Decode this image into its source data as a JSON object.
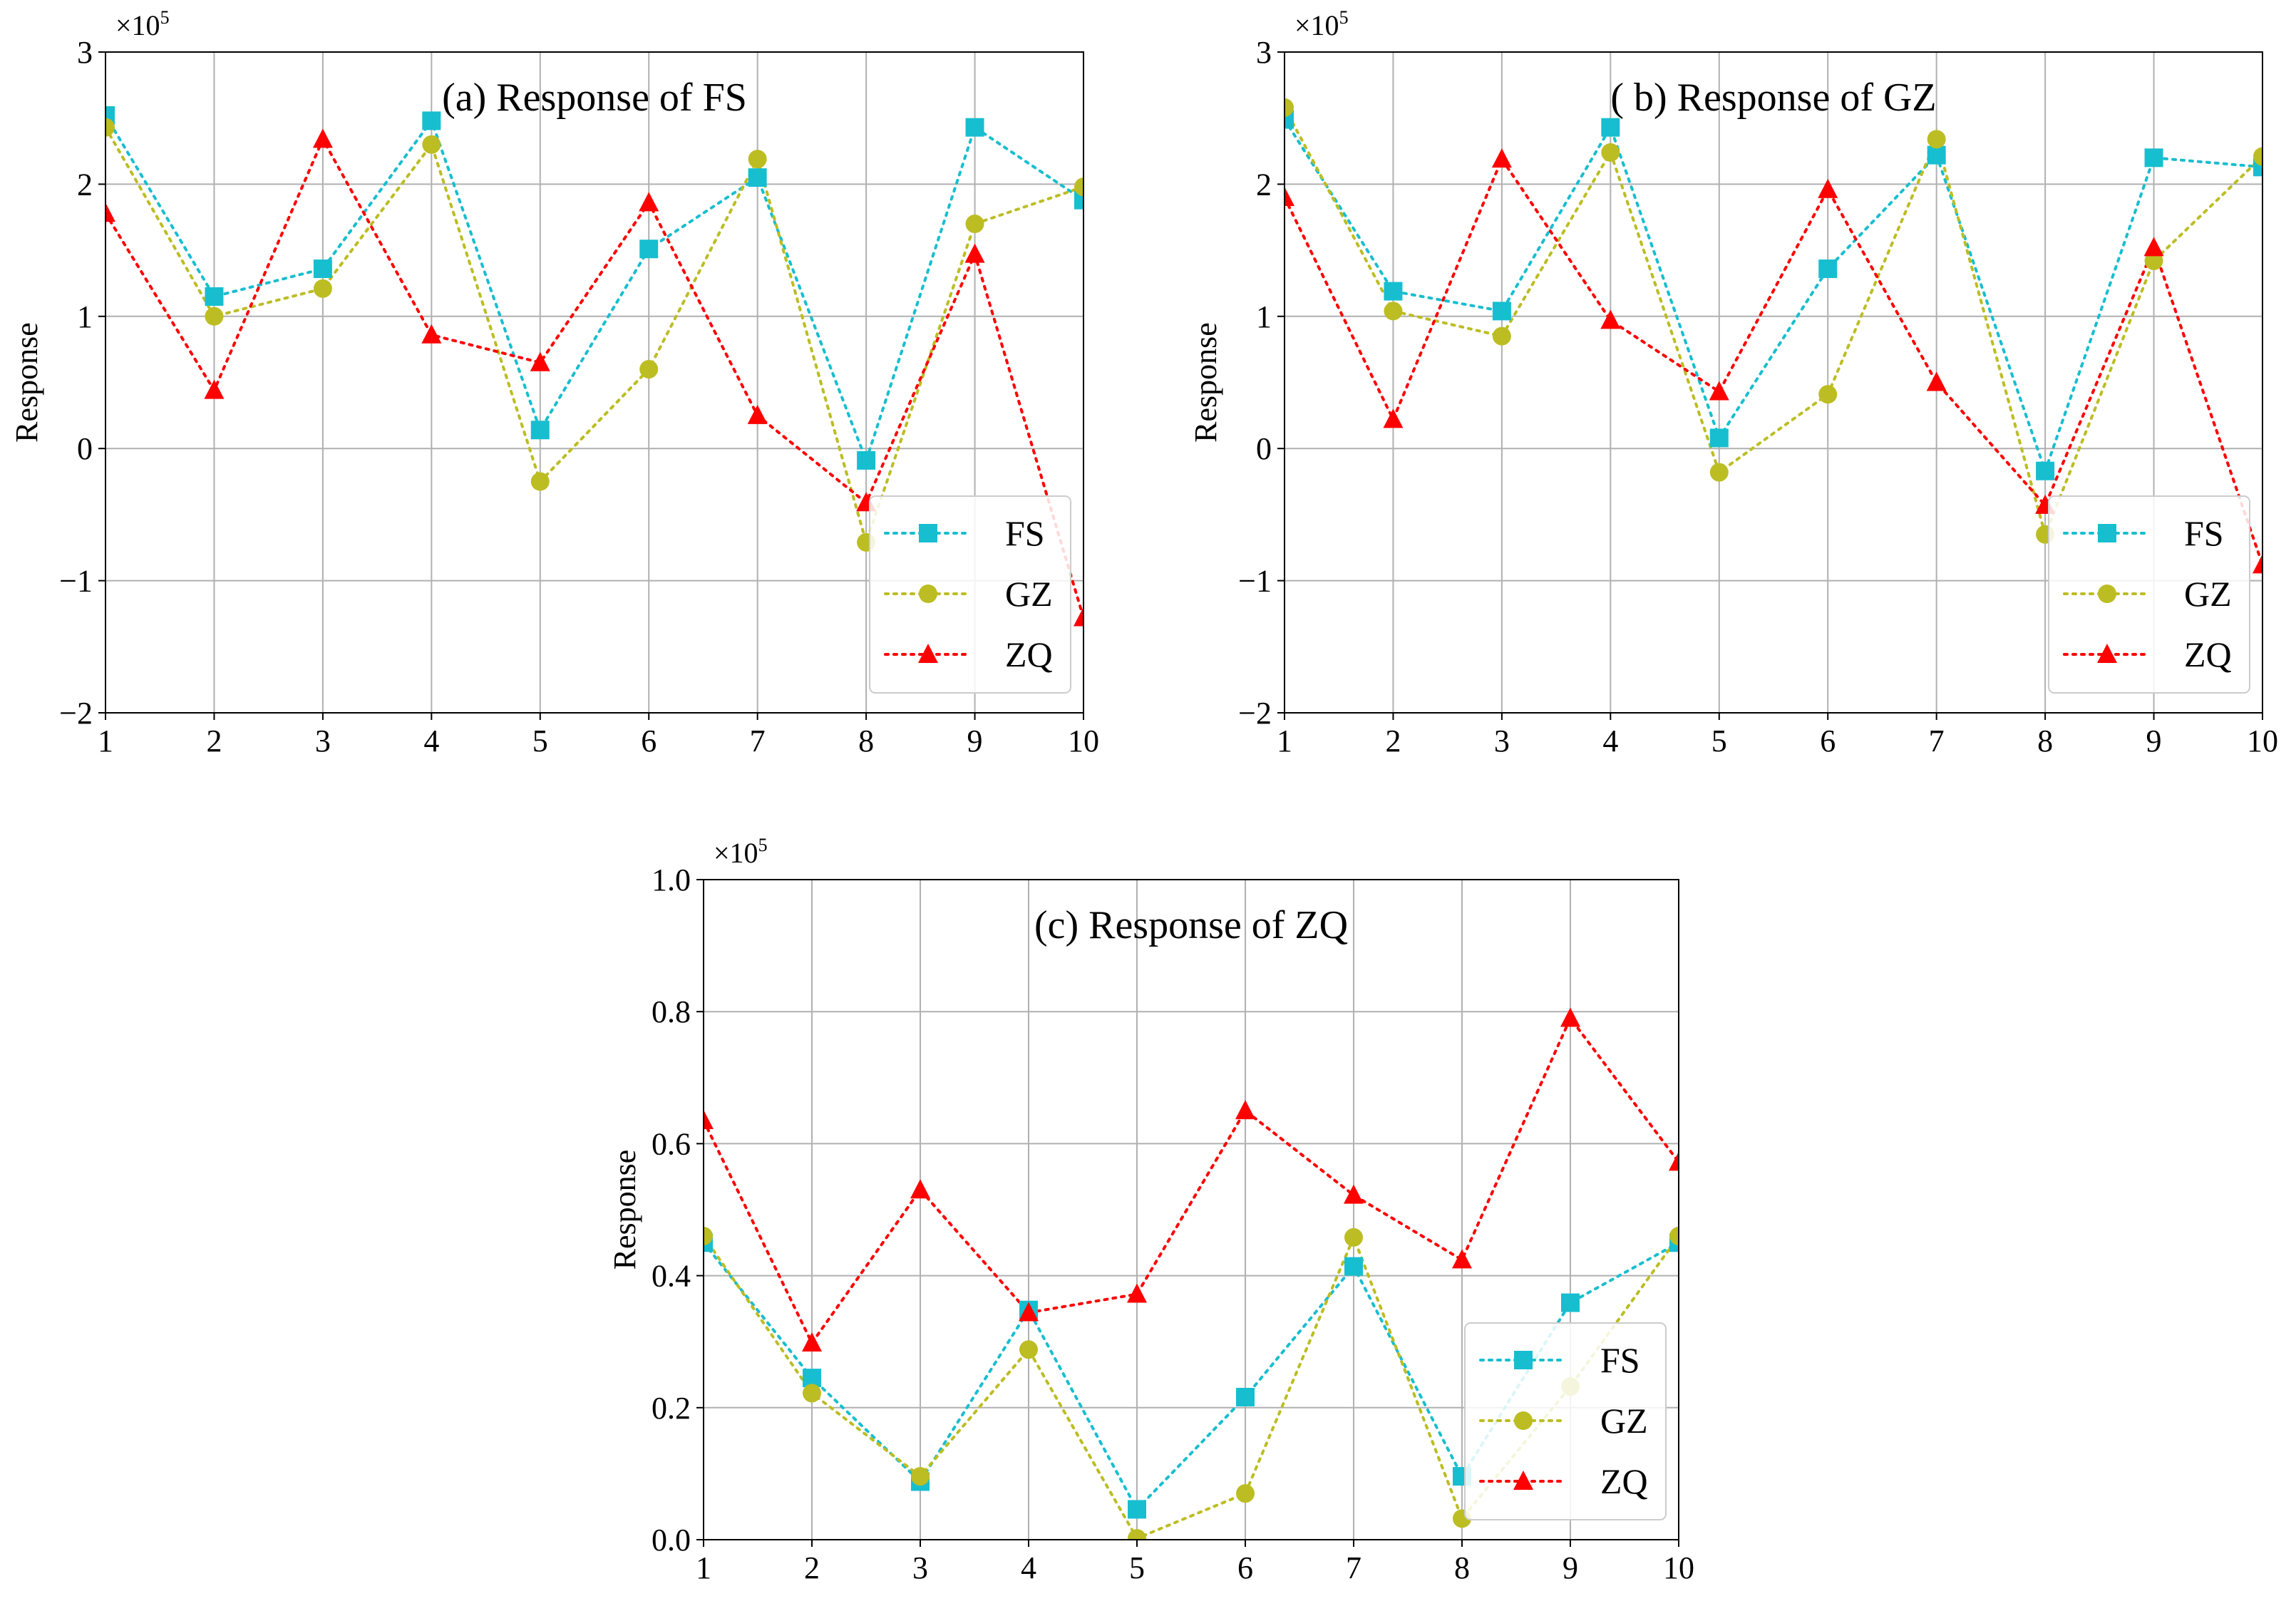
{
  "colors": {
    "FS": "#17becf",
    "GZ": "#bcbd22",
    "ZQ": "#ff0000",
    "grid": "#b0b0b0",
    "axis": "#000000"
  },
  "chart_data": [
    {
      "type": "line",
      "title": "(a) Response of FS",
      "xlabel": "",
      "ylabel": "Response",
      "multiplier": "×10",
      "multiplier_exp": "5",
      "x": [
        1,
        2,
        3,
        4,
        5,
        6,
        7,
        8,
        9,
        10
      ],
      "xlim": [
        1,
        10
      ],
      "ylim": [
        -2,
        3
      ],
      "yticks": [
        -2,
        -1,
        0,
        1,
        2,
        3
      ],
      "ytick_labels": [
        "−2",
        "−1",
        "0",
        "1",
        "2",
        "3"
      ],
      "legend": "lower-right",
      "series": [
        {
          "name": "FS",
          "marker": "square",
          "values": [
            2.52,
            1.15,
            1.36,
            2.48,
            0.14,
            1.51,
            2.05,
            -0.09,
            2.43,
            1.88
          ]
        },
        {
          "name": "GZ",
          "marker": "circle",
          "values": [
            2.43,
            1.0,
            1.21,
            2.3,
            -0.25,
            0.6,
            2.19,
            -0.71,
            1.7,
            1.98
          ]
        },
        {
          "name": "ZQ",
          "marker": "triangle",
          "values": [
            1.78,
            0.44,
            2.34,
            0.86,
            0.65,
            1.86,
            0.25,
            -0.41,
            1.47,
            -1.28
          ]
        }
      ]
    },
    {
      "type": "line",
      "title": "( b) Response of GZ",
      "xlabel": "",
      "ylabel": "Response",
      "multiplier": "×10",
      "multiplier_exp": "5",
      "x": [
        1,
        2,
        3,
        4,
        5,
        6,
        7,
        8,
        9,
        10
      ],
      "xlim": [
        1,
        10
      ],
      "ylim": [
        -2,
        3
      ],
      "yticks": [
        -2,
        -1,
        0,
        1,
        2,
        3
      ],
      "ytick_labels": [
        "−2",
        "−1",
        "0",
        "1",
        "2",
        "3"
      ],
      "legend": "lower-right",
      "series": [
        {
          "name": "FS",
          "marker": "square",
          "values": [
            2.49,
            1.19,
            1.04,
            2.43,
            0.08,
            1.36,
            2.22,
            -0.17,
            2.2,
            2.13
          ]
        },
        {
          "name": "GZ",
          "marker": "circle",
          "values": [
            2.58,
            1.04,
            0.85,
            2.24,
            -0.18,
            0.41,
            2.34,
            -0.65,
            1.42,
            2.21
          ]
        },
        {
          "name": "ZQ",
          "marker": "triangle",
          "values": [
            1.9,
            0.22,
            2.19,
            0.97,
            0.43,
            1.96,
            0.5,
            -0.43,
            1.52,
            -0.88
          ]
        }
      ]
    },
    {
      "type": "line",
      "title": "(c) Response of ZQ",
      "xlabel": "",
      "ylabel": "Response",
      "multiplier": "×10",
      "multiplier_exp": "5",
      "x": [
        1,
        2,
        3,
        4,
        5,
        6,
        7,
        8,
        9,
        10
      ],
      "xlim": [
        1,
        10
      ],
      "ylim": [
        0,
        1
      ],
      "yticks": [
        0,
        0.2,
        0.4,
        0.6,
        0.8,
        1.0
      ],
      "ytick_labels": [
        "0.0",
        "0.2",
        "0.4",
        "0.6",
        "0.8",
        "1.0"
      ],
      "legend": "lower-right",
      "series": [
        {
          "name": "FS",
          "marker": "square",
          "values": [
            0.45,
            0.245,
            0.088,
            0.348,
            0.046,
            0.216,
            0.414,
            0.096,
            0.359,
            0.45
          ]
        },
        {
          "name": "GZ",
          "marker": "circle",
          "values": [
            0.46,
            0.222,
            0.096,
            0.288,
            0.002,
            0.07,
            0.458,
            0.032,
            0.232,
            0.46
          ]
        },
        {
          "name": "ZQ",
          "marker": "triangle",
          "values": [
            0.635,
            0.298,
            0.53,
            0.344,
            0.372,
            0.65,
            0.522,
            0.424,
            0.79,
            0.572
          ]
        }
      ]
    }
  ]
}
